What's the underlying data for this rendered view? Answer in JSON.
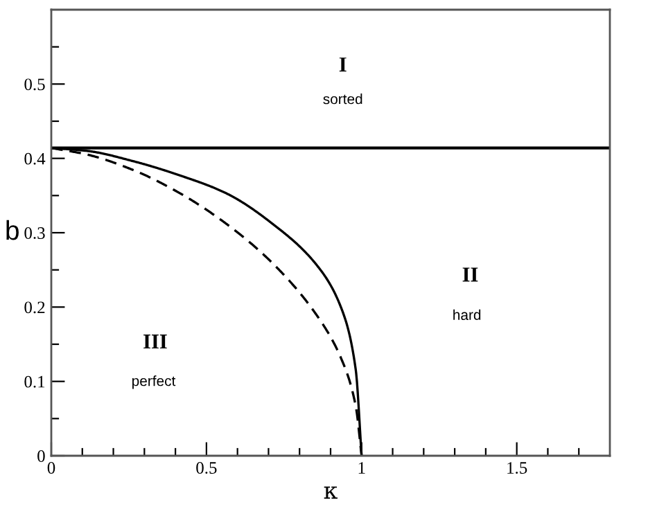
{
  "chart_data": {
    "type": "line",
    "xlabel": "κ",
    "ylabel": "b",
    "xlim": [
      0,
      1.8
    ],
    "ylim": [
      0,
      0.6
    ],
    "xticks": [
      0,
      {
        "value": 0.1,
        "label": null
      },
      {
        "value": 0.2,
        "label": null
      },
      {
        "value": 0.3,
        "label": null
      },
      {
        "value": 0.4,
        "label": null
      },
      0.5,
      {
        "value": 0.6,
        "label": null
      },
      {
        "value": 0.7,
        "label": null
      },
      {
        "value": 0.8,
        "label": null
      },
      {
        "value": 0.9,
        "label": null
      },
      1,
      {
        "value": 1.1,
        "label": null
      },
      {
        "value": 1.2,
        "label": null
      },
      {
        "value": 1.3,
        "label": null
      },
      {
        "value": 1.4,
        "label": null
      },
      1.5,
      {
        "value": 1.6,
        "label": null
      },
      {
        "value": 1.7,
        "label": null
      }
    ],
    "yticks": [
      0,
      {
        "value": 0.05,
        "label": null
      },
      0.1,
      {
        "value": 0.15,
        "label": null
      },
      0.2,
      {
        "value": 0.25,
        "label": null
      },
      0.3,
      {
        "value": 0.35,
        "label": null
      },
      0.4,
      {
        "value": 0.45,
        "label": null
      },
      0.5,
      {
        "value": 0.55,
        "label": null
      }
    ],
    "grid": false,
    "legend": false,
    "series": [
      {
        "color": "#000000",
        "line_style": "solid",
        "x": [
          0,
          0.117,
          0.266,
          0.415,
          0.564,
          0.713,
          0.862,
          0.936,
          0.981,
          1.0
        ],
        "values": [
          0.414,
          0.41,
          0.396,
          0.377,
          0.353,
          0.312,
          0.253,
          0.197,
          0.116,
          0
        ]
      },
      {
        "color": "#000000",
        "line_style": "dashed",
        "x": [
          0,
          0.117,
          0.266,
          0.415,
          0.564,
          0.713,
          0.862,
          0.936,
          0.981,
          1.0
        ],
        "values": [
          0.414,
          0.405,
          0.384,
          0.353,
          0.312,
          0.259,
          0.185,
          0.129,
          0.067,
          0
        ]
      }
    ],
    "ref_lines": [
      {
        "axis": "y",
        "value": 0.414,
        "color": "#000000",
        "line_style": "solid"
      }
    ],
    "annotations": [
      "I",
      "sorted",
      "II",
      "hard",
      "III",
      "perfect"
    ]
  }
}
